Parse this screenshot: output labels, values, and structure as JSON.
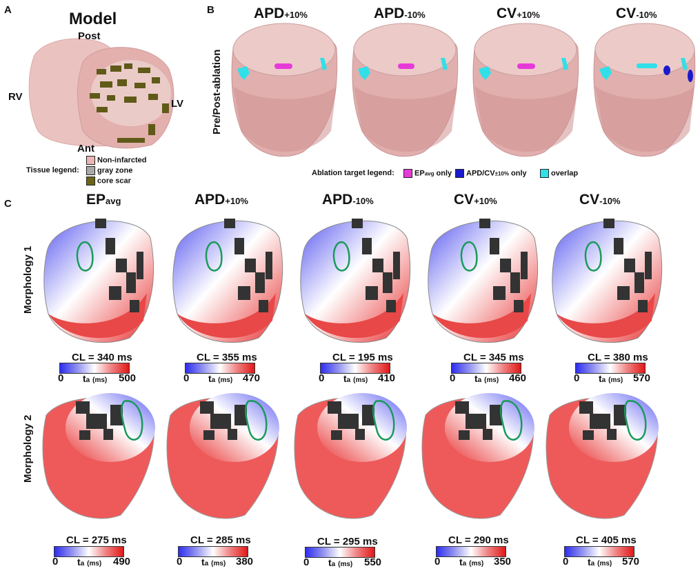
{
  "panelA": {
    "letter": "A",
    "title": "Model",
    "orientation": {
      "post": "Post",
      "ant": "Ant",
      "rv": "RV",
      "lv": "LV"
    },
    "legend_title": "Tissue legend:",
    "legend": [
      {
        "label": "Non-infarcted",
        "color": "#e8b7b4"
      },
      {
        "label": "gray zone",
        "color": "#a9a9a9"
      },
      {
        "label": "core scar",
        "color": "#6b6518"
      }
    ]
  },
  "panelB": {
    "letter": "B",
    "row_label": "Pre/Post-ablation",
    "columns": [
      {
        "base": "APD",
        "suffix": "+10%"
      },
      {
        "base": "APD",
        "suffix": "-10%"
      },
      {
        "base": "CV",
        "suffix": "+10%"
      },
      {
        "base": "CV",
        "suffix": "-10%"
      }
    ],
    "legend_title": "Ablation target legend:",
    "legend": [
      {
        "label_main": "EP",
        "label_sub": "avg",
        "label_rest": " only",
        "color": "#e63ad8"
      },
      {
        "label_main": "APD/CV",
        "label_sub": "±10%",
        "label_rest": " only",
        "color": "#1a1acc"
      },
      {
        "label_main": "overlap",
        "label_sub": "",
        "label_rest": "",
        "color": "#30e0e8"
      }
    ]
  },
  "panelC": {
    "letter": "C",
    "columns": [
      {
        "base": "EP",
        "suffix": "avg"
      },
      {
        "base": "APD",
        "suffix": "+10%"
      },
      {
        "base": "APD",
        "suffix": "-10%"
      },
      {
        "base": "CV",
        "suffix": "+10%"
      },
      {
        "base": "CV",
        "suffix": "-10%"
      }
    ],
    "ta_label": "t",
    "ta_sub": "a",
    "ta_units": "(ms)",
    "rows": [
      {
        "label": "Morphology 1",
        "maps": [
          {
            "cl": "CL = 340 ms",
            "min": "0",
            "max": "500"
          },
          {
            "cl": "CL = 355 ms",
            "min": "0",
            "max": "470"
          },
          {
            "cl": "CL = 195 ms",
            "min": "0",
            "max": "410"
          },
          {
            "cl": "CL = 345 ms",
            "min": "0",
            "max": "460"
          },
          {
            "cl": "CL = 380 ms",
            "min": "0",
            "max": "570"
          }
        ]
      },
      {
        "label": "Morphology 2",
        "maps": [
          {
            "cl": "CL = 275 ms",
            "min": "0",
            "max": "490"
          },
          {
            "cl": "CL = 285 ms",
            "min": "0",
            "max": "380"
          },
          {
            "cl": "CL = 295 ms",
            "min": "0",
            "max": "550"
          },
          {
            "cl": "CL = 290 ms",
            "min": "0",
            "max": "350"
          },
          {
            "cl": "CL = 405 ms",
            "min": "0",
            "max": "570"
          }
        ]
      }
    ]
  }
}
